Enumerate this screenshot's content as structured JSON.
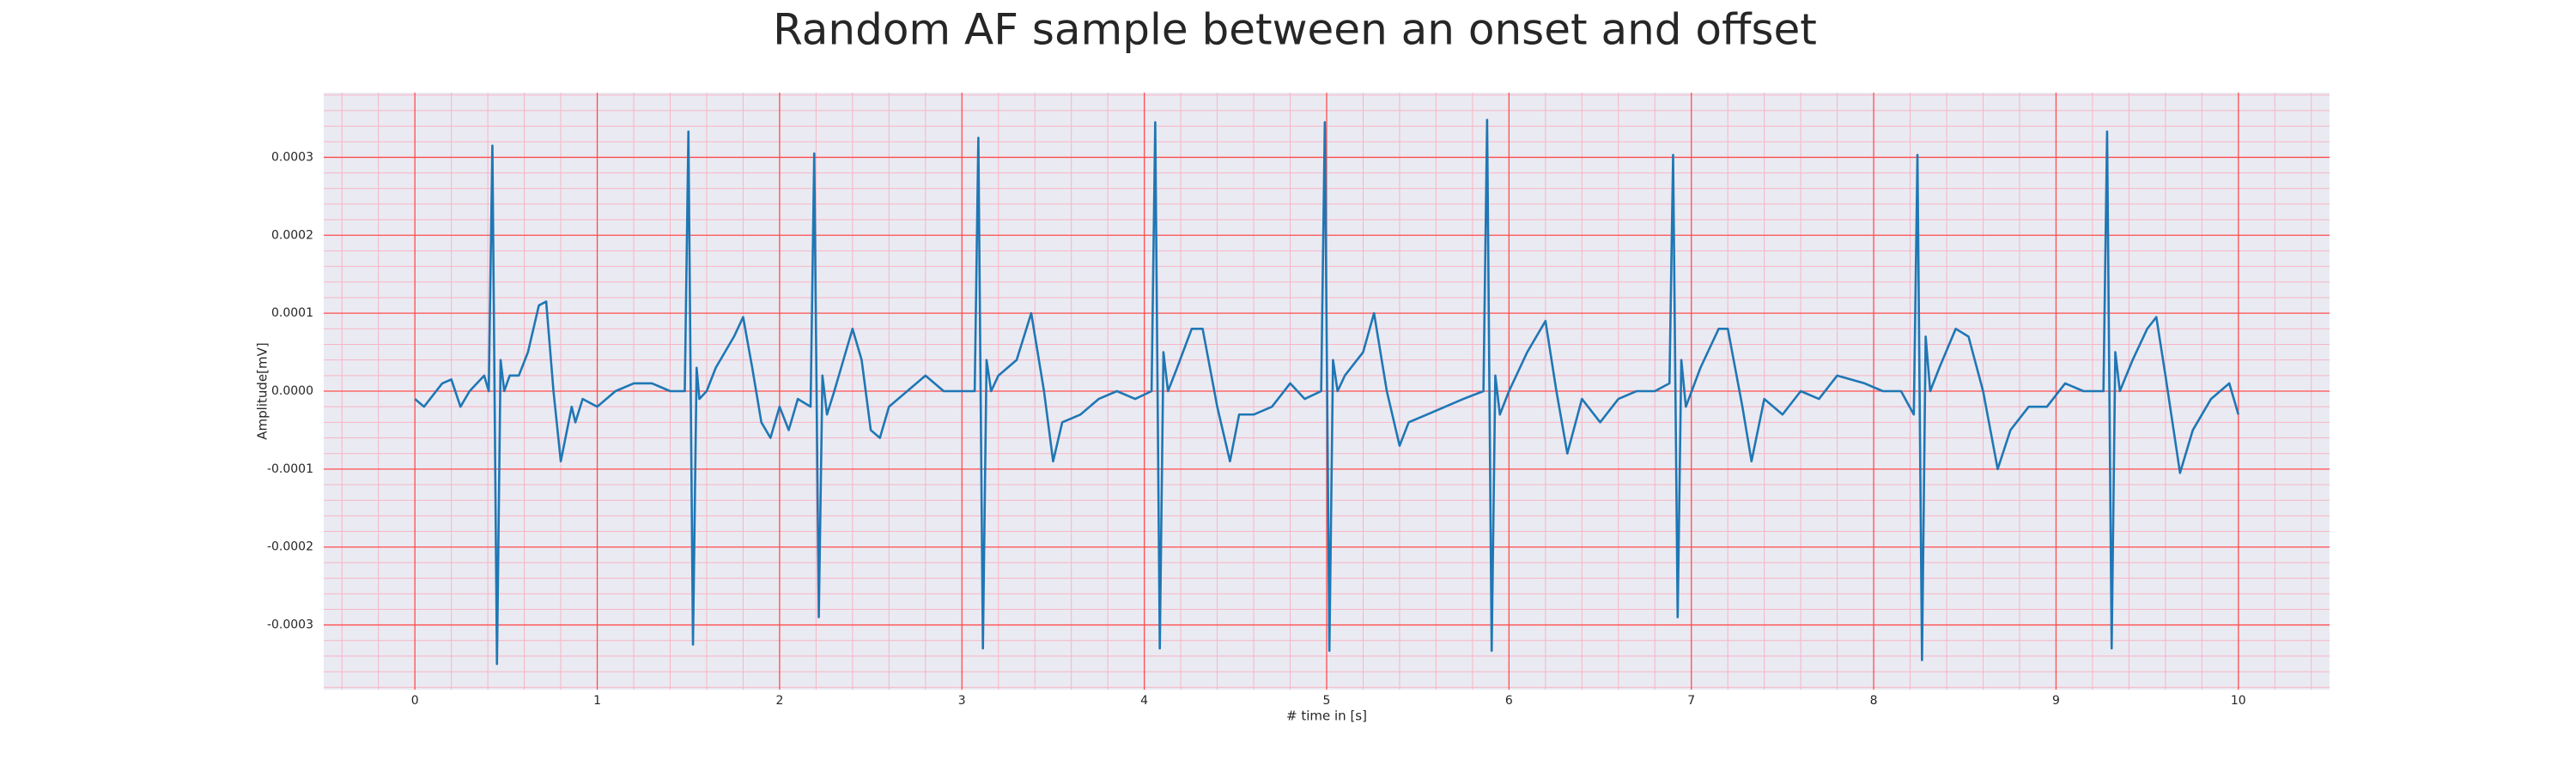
{
  "chart_data": {
    "type": "line",
    "title": "Random AF sample between an onset and offset",
    "x_label": "# time in [s]",
    "y_label": "Amplitude[mV]",
    "color": "#1f77b4",
    "grid": true,
    "grid_color": "#ff4d4d",
    "minor_grid": true,
    "minor_grid_color": "#f7b5c4",
    "background": "#eaeaf2",
    "xlim": [
      -0.5,
      10.5
    ],
    "ylim": [
      -0.000383,
      0.000383
    ],
    "xticks": [
      0,
      1,
      2,
      3,
      4,
      5,
      6,
      7,
      8,
      9,
      10
    ],
    "yticks": [
      -0.0003,
      -0.0002,
      -0.0001,
      {
        "value": 0,
        "label": "0.0000"
      },
      0.0001,
      0.0002,
      0.0003
    ],
    "x": [
      0,
      0.05,
      0.15,
      0.2,
      0.25,
      0.3,
      0.38,
      0.405,
      0.425,
      0.45,
      0.47,
      0.49,
      0.52,
      0.57,
      0.62,
      0.68,
      0.72,
      0.76,
      0.8,
      0.86,
      0.88,
      0.92,
      1.0,
      1.1,
      1.2,
      1.3,
      1.4,
      1.48,
      1.5,
      1.525,
      1.545,
      1.56,
      1.6,
      1.65,
      1.75,
      1.8,
      1.85,
      1.9,
      1.95,
      2.0,
      2.05,
      2.1,
      2.17,
      2.19,
      2.215,
      2.235,
      2.26,
      2.3,
      2.4,
      2.45,
      2.5,
      2.55,
      2.6,
      2.7,
      2.8,
      2.9,
      3.0,
      3.07,
      3.09,
      3.115,
      3.135,
      3.16,
      3.2,
      3.3,
      3.38,
      3.45,
      3.5,
      3.55,
      3.65,
      3.75,
      3.85,
      3.95,
      4.04,
      4.06,
      4.085,
      4.105,
      4.13,
      4.18,
      4.26,
      4.32,
      4.4,
      4.47,
      4.52,
      4.6,
      4.7,
      4.8,
      4.88,
      4.97,
      4.99,
      5.015,
      5.035,
      5.06,
      5.1,
      5.2,
      5.26,
      5.33,
      5.4,
      5.45,
      5.55,
      5.65,
      5.75,
      5.86,
      5.88,
      5.905,
      5.925,
      5.95,
      6.0,
      6.1,
      6.2,
      6.26,
      6.32,
      6.4,
      6.5,
      6.6,
      6.7,
      6.8,
      6.88,
      6.9,
      6.925,
      6.945,
      6.97,
      7.05,
      7.15,
      7.2,
      7.28,
      7.33,
      7.4,
      7.5,
      7.6,
      7.7,
      7.8,
      7.95,
      8.05,
      8.15,
      8.22,
      8.24,
      8.265,
      8.285,
      8.31,
      8.36,
      8.45,
      8.52,
      8.6,
      8.68,
      8.75,
      8.85,
      8.95,
      9.05,
      9.15,
      9.26,
      9.28,
      9.305,
      9.325,
      9.35,
      9.42,
      9.5,
      9.55,
      9.6,
      9.68,
      9.75,
      9.85,
      9.95,
      10.0
    ],
    "values": [
      -1e-05,
      -2e-05,
      1e-05,
      1.5e-05,
      -2e-05,
      0.0,
      2e-05,
      0.0,
      0.000315,
      -0.00035,
      4e-05,
      0.0,
      2e-05,
      2e-05,
      5e-05,
      0.00011,
      0.000115,
      0.0,
      -9e-05,
      -2e-05,
      -4e-05,
      -1e-05,
      -2e-05,
      0.0,
      1e-05,
      1e-05,
      0.0,
      0.0,
      0.000333,
      -0.000325,
      3e-05,
      -1e-05,
      0.0,
      3e-05,
      7e-05,
      9.5e-05,
      3e-05,
      -4e-05,
      -6e-05,
      -2e-05,
      -5e-05,
      -1e-05,
      -2e-05,
      0.000305,
      -0.00029,
      2e-05,
      -3e-05,
      0.0,
      8e-05,
      4e-05,
      -5e-05,
      -6e-05,
      -2e-05,
      0.0,
      2e-05,
      0.0,
      0.0,
      0.0,
      0.000325,
      -0.00033,
      4e-05,
      0.0,
      2e-05,
      4e-05,
      0.0001,
      0.0,
      -9e-05,
      -4e-05,
      -3e-05,
      -1e-05,
      0.0,
      -1e-05,
      0.0,
      0.000345,
      -0.00033,
      5e-05,
      0.0,
      3e-05,
      8e-05,
      8e-05,
      -2e-05,
      -9e-05,
      -3e-05,
      -3e-05,
      -2e-05,
      1e-05,
      -1e-05,
      0.0,
      0.000345,
      -0.000333,
      4e-05,
      0.0,
      2e-05,
      5e-05,
      0.0001,
      0.0,
      -7e-05,
      -4e-05,
      -3e-05,
      -2e-05,
      -1e-05,
      0.0,
      0.000348,
      -0.000333,
      2e-05,
      -3e-05,
      0.0,
      5e-05,
      9e-05,
      0.0,
      -8e-05,
      -1e-05,
      -4e-05,
      -1e-05,
      0.0,
      0.0,
      1e-05,
      0.000303,
      -0.00029,
      4e-05,
      -2e-05,
      3e-05,
      8e-05,
      8e-05,
      -2e-05,
      -9e-05,
      -1e-05,
      -3e-05,
      0.0,
      -1e-05,
      2e-05,
      1e-05,
      0.0,
      0.0,
      -3e-05,
      0.000303,
      -0.000345,
      7e-05,
      0.0,
      3e-05,
      8e-05,
      7e-05,
      0.0,
      -0.0001,
      -5e-05,
      -2e-05,
      -2e-05,
      1e-05,
      0.0,
      0.0,
      0.000333,
      -0.00033,
      5e-05,
      0.0,
      4e-05,
      8e-05,
      9.5e-05,
      2e-05,
      -0.000105,
      -5e-05,
      -1e-05,
      1e-05,
      -3e-05
    ]
  }
}
